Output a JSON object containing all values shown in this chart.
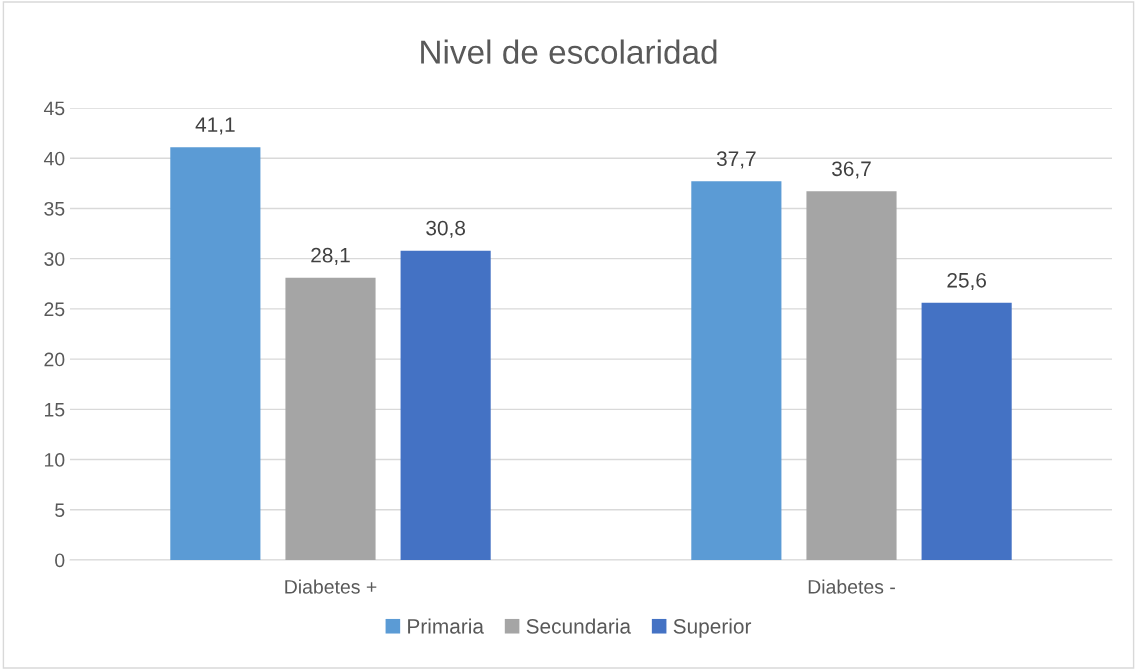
{
  "chart_data": {
    "type": "bar",
    "title": "Nivel de escolaridad",
    "categories": [
      "Diabetes +",
      "Diabetes -"
    ],
    "series": [
      {
        "name": "Primaria",
        "color": "#5b9bd5",
        "values": [
          41.1,
          37.7
        ],
        "value_labels": [
          "41,1",
          "37,7"
        ]
      },
      {
        "name": "Secundaria",
        "color": "#a5a5a5",
        "values": [
          28.1,
          36.7
        ],
        "value_labels": [
          "28,1",
          "36,7"
        ]
      },
      {
        "name": "Superior",
        "color": "#4472c4",
        "values": [
          30.8,
          25.6
        ],
        "value_labels": [
          "30,8",
          "25,6"
        ]
      }
    ],
    "ylim": [
      0,
      45
    ],
    "yticks": [
      0,
      5,
      10,
      15,
      20,
      25,
      30,
      35,
      40,
      45
    ],
    "grid": "y",
    "legend": "bottom"
  }
}
